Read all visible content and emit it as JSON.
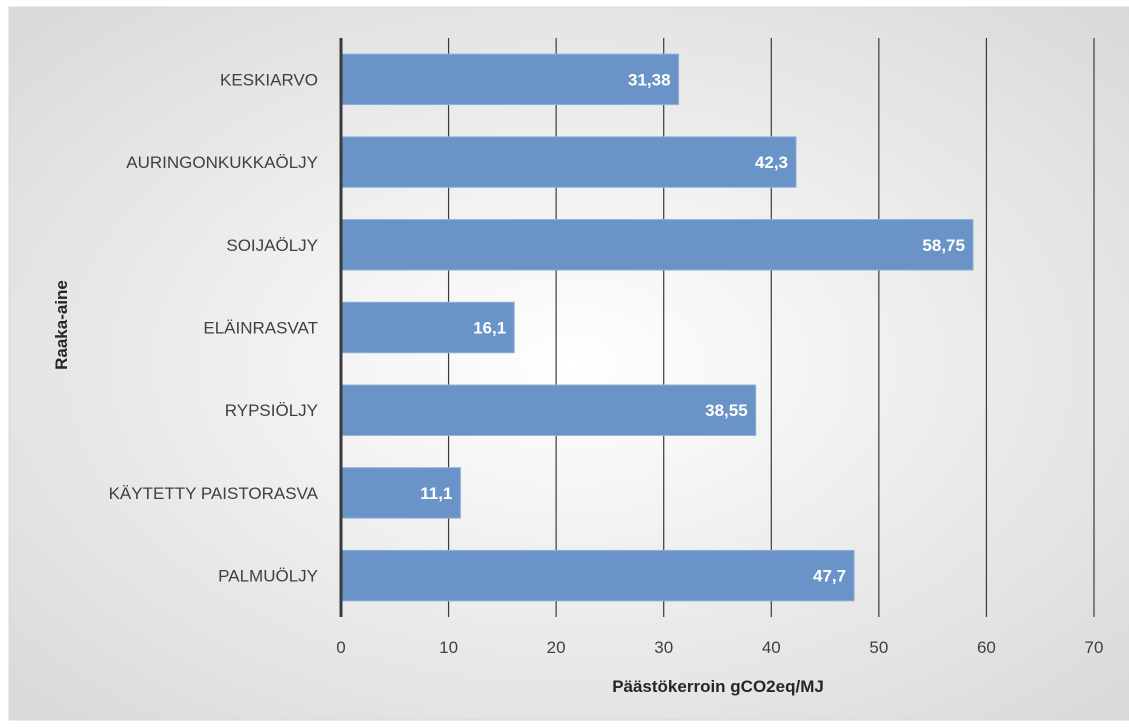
{
  "chart_data": {
    "type": "bar",
    "orientation": "horizontal",
    "title": "",
    "xlabel": "Päästökerroin gCO2eq/MJ",
    "ylabel": "Raaka-aine",
    "categories": [
      "KESKIARVO",
      "AURINGONKUKKAÖLJY",
      "SOIJAÖLJY",
      "ELÄINRASVAT",
      "RYPSIÖLJY",
      "KÄYTETTY PAISTORASVA",
      "PALMUÖLJY"
    ],
    "values": [
      31.38,
      42.3,
      58.75,
      16.1,
      38.55,
      11.1,
      47.7
    ],
    "data_labels": [
      "31,38",
      "42,3",
      "58,75",
      "16,1",
      "38,55",
      "11,1",
      "47,7"
    ],
    "xlim": [
      0,
      70
    ],
    "xticks": [
      0,
      10,
      20,
      30,
      40,
      50,
      60,
      70
    ],
    "xtick_labels": [
      "0",
      "10",
      "20",
      "30",
      "40",
      "50",
      "60",
      "70"
    ],
    "grid": "vertical",
    "legend": "none",
    "colors": {
      "bar": "#6a93c7",
      "bar_edge": "#8fb0d9",
      "grid": "#3a3a3a",
      "axis": "#3a3a3a",
      "background_center": "#ffffff",
      "background_edge": "#d6d6d6",
      "frame": "#d9d9d9"
    }
  }
}
